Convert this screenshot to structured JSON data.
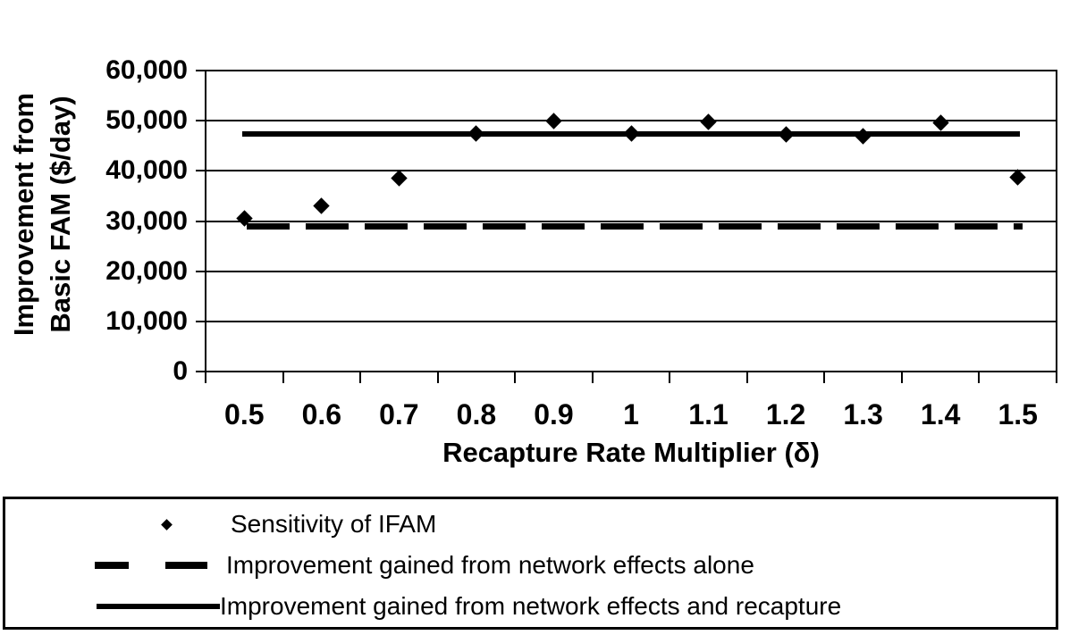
{
  "chart_data": {
    "type": "scatter",
    "title": "",
    "xlabel": "Recapture Rate Multiplier (δ)",
    "ylabel": "Improvement from Basic FAM ($/day)",
    "ylabel_lines": [
      "Improvement from",
      "Basic FAM ($/day)"
    ],
    "categories": [
      "0.5",
      "0.6",
      "0.7",
      "0.8",
      "0.9",
      "1",
      "1.1",
      "1.2",
      "1.3",
      "1.4",
      "1.5"
    ],
    "ylim": [
      0,
      60000
    ],
    "yticks": [
      {
        "value": 0,
        "label": "0"
      },
      {
        "value": 10000,
        "label": "10,000"
      },
      {
        "value": 20000,
        "label": "20,000"
      },
      {
        "value": 30000,
        "label": "30,000"
      },
      {
        "value": 40000,
        "label": "40,000"
      },
      {
        "value": 50000,
        "label": "50,000"
      },
      {
        "value": 60000,
        "label": "60,000"
      }
    ],
    "grid": "horizontal",
    "legend_position": "bottom-box",
    "colors": {
      "foreground": "#000000",
      "background": "#ffffff"
    },
    "series": [
      {
        "name": "Sensitivity of IFAM",
        "type": "scatter",
        "marker": "diamond",
        "values": [
          30600,
          33100,
          38500,
          47500,
          50000,
          47400,
          49800,
          47300,
          47000,
          49600,
          38800
        ]
      },
      {
        "name": "Improvement gained from network effects alone",
        "type": "horizontal-line",
        "style": "dashed",
        "value": 29000
      },
      {
        "name": "Improvement gained from network effects and recapture",
        "type": "horizontal-line",
        "style": "solid",
        "value": 47300
      }
    ]
  }
}
